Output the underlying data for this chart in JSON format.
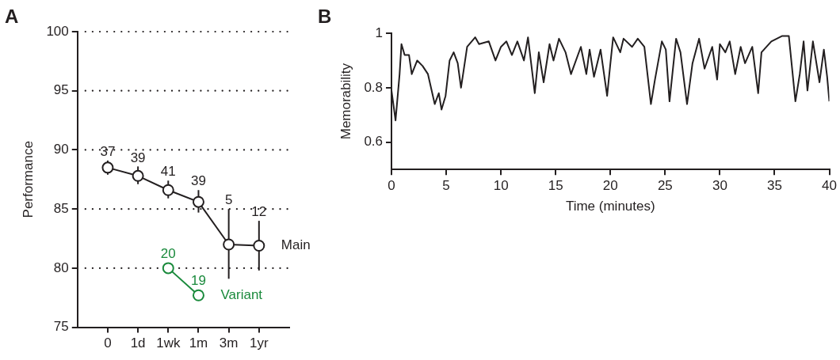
{
  "chart_data": [
    {
      "type": "line",
      "title": "A",
      "ylabel": "Performance",
      "categories": [
        "0",
        "1d",
        "1wk",
        "1m",
        "3m",
        "1yr"
      ],
      "series": [
        {
          "name": "Main",
          "color": "#231f20",
          "values": [
            88.5,
            87.8,
            86.6,
            85.6,
            82.0,
            81.9
          ],
          "errors": [
            [
              87.9,
              89.1
            ],
            [
              87.1,
              88.6
            ],
            [
              85.9,
              87.4
            ],
            [
              84.7,
              86.6
            ],
            [
              79.1,
              85.0
            ],
            [
              79.8,
              84.0
            ]
          ]
        },
        {
          "name": "Variant",
          "color": "#1a8a3c",
          "values": [
            null,
            null,
            80.0,
            77.7,
            null,
            null
          ]
        }
      ],
      "ylim": [
        75,
        100
      ],
      "yticks": [
        75,
        80,
        85,
        90,
        95,
        100
      ],
      "grid": "y",
      "marker": "circle",
      "annotations": [
        {
          "text": "37",
          "x": "0",
          "y": 88.5
        },
        {
          "text": "39",
          "x": "1d",
          "y": 87.8
        },
        {
          "text": "41",
          "x": "1wk",
          "y": 86.6
        },
        {
          "text": "39",
          "x": "1m",
          "y": 85.6
        },
        {
          "text": "5",
          "x": "3m",
          "y": 82.0
        },
        {
          "text": "12",
          "x": "1yr",
          "y": 81.9
        },
        {
          "text": "20",
          "x": "1wk",
          "y": 80.0
        },
        {
          "text": "19",
          "x": "1m",
          "y": 77.7
        }
      ]
    },
    {
      "type": "line",
      "title": "B",
      "xlabel": "Time (minutes)",
      "ylabel": "Memorability",
      "x": [
        0,
        0.37,
        0.74,
        0.91,
        1.2,
        1.6,
        1.85,
        2.35,
        2.84,
        3.33,
        3.95,
        4.32,
        4.57,
        4.94,
        5.31,
        5.68,
        6.05,
        6.35,
        6.54,
        6.91,
        7.65,
        8.0,
        8.89,
        9.5,
        10.0,
        10.5,
        11.0,
        11.5,
        12.1,
        12.47,
        13.09,
        13.46,
        13.9,
        14.44,
        14.8,
        15.3,
        15.9,
        16.4,
        17.3,
        17.8,
        18.1,
        18.5,
        19.1,
        19.7,
        20.0,
        20.25,
        20.9,
        21.2,
        21.98,
        22.5,
        23.1,
        23.7,
        24.07,
        24.7,
        25.06,
        25.4,
        26.0,
        26.4,
        27.0,
        27.5,
        28.1,
        28.6,
        29.3,
        29.75,
        30.0,
        30.5,
        30.9,
        31.4,
        31.9,
        32.3,
        32.96,
        33.5,
        33.8,
        34.7,
        35.7,
        36.3,
        36.9,
        37.3,
        37.65,
        38.0,
        38.5,
        39.1,
        39.5,
        39.8,
        40.0
      ],
      "series": [
        {
          "color": "#231f20",
          "values": [
            0.79,
            0.68,
            0.85,
            0.96,
            0.92,
            0.92,
            0.85,
            0.9,
            0.88,
            0.85,
            0.74,
            0.78,
            0.72,
            0.77,
            0.9,
            0.93,
            0.89,
            0.8,
            0.85,
            0.95,
            0.985,
            0.96,
            0.97,
            0.9,
            0.95,
            0.97,
            0.92,
            0.97,
            0.9,
            0.985,
            0.78,
            0.93,
            0.82,
            0.96,
            0.9,
            0.98,
            0.93,
            0.85,
            0.95,
            0.85,
            0.94,
            0.84,
            0.94,
            0.77,
            0.89,
            0.985,
            0.93,
            0.98,
            0.95,
            0.98,
            0.95,
            0.74,
            0.83,
            0.97,
            0.94,
            0.75,
            0.98,
            0.93,
            0.74,
            0.89,
            0.98,
            0.87,
            0.95,
            0.83,
            0.96,
            0.93,
            0.97,
            0.85,
            0.95,
            0.89,
            0.95,
            0.78,
            0.93,
            0.97,
            0.99,
            0.99,
            0.75,
            0.85,
            0.97,
            0.79,
            0.97,
            0.82,
            0.94,
            0.84,
            0.75
          ]
        }
      ],
      "xlim": [
        0,
        40
      ],
      "xticks": [
        0,
        5,
        10,
        15,
        20,
        25,
        30,
        35,
        40
      ],
      "ylim": [
        0.5,
        1.0
      ],
      "yticks": [
        0.6,
        0.8,
        1
      ],
      "marker": "none"
    }
  ]
}
